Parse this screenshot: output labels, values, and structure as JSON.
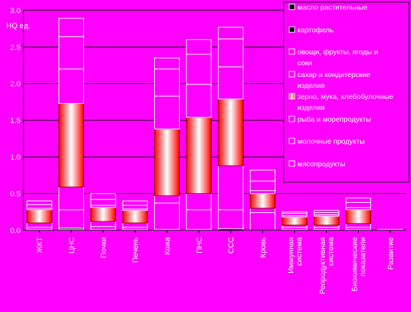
{
  "chart_data": {
    "type": "bar",
    "stacked": true,
    "ylabel": "НQ ед.",
    "ylim": [
      0,
      3.0
    ],
    "yticks": [
      "0.0",
      "0.5",
      "1.0",
      "1.5",
      "2.0",
      "2.5",
      "3.0"
    ],
    "grid": true,
    "legend_position": "top-right",
    "categories": [
      "ЖКТ",
      "ЦНС",
      "Почки",
      "Печень",
      "Кожа",
      "ПНС",
      "ССС",
      "Кровь",
      "Иммунная система",
      "Репродуктивная система",
      "Биохимические показатели",
      "Развитие"
    ],
    "series": [
      {
        "name": "масло растительные",
        "color": "#000000",
        "values": [
          0,
          0.01,
          0,
          0,
          0,
          0,
          0,
          0,
          0,
          0,
          0,
          0
        ]
      },
      {
        "name": "картофель",
        "color": "#000000",
        "values": [
          0.01,
          0.02,
          0.01,
          0.01,
          0.01,
          0.01,
          0.02,
          0,
          0.01,
          0.01,
          0.01,
          0.01
        ]
      },
      {
        "name": "овощи, фрукты, ягоды и соки",
        "color": "#ff00ff",
        "values": [
          0.03,
          0.25,
          0.04,
          0.03,
          0.36,
          0.27,
          0.26,
          0.24,
          0.03,
          0.03,
          0.03,
          0
        ]
      },
      {
        "name": "сахар и кондитерские изделия",
        "color": "#ff00ff",
        "values": [
          0.06,
          0.31,
          0.07,
          0.06,
          0.1,
          0.22,
          0.6,
          0.06,
          0.03,
          0.03,
          0.05,
          0
        ]
      },
      {
        "name": "зерно, мука, хлебобулочные изделия",
        "color": "gradient",
        "values": [
          0.18,
          1.14,
          0.19,
          0.17,
          0.91,
          1.04,
          0.91,
          0.2,
          0.11,
          0.12,
          0.19,
          0
        ]
      },
      {
        "name": "рыба и морепродукты",
        "color": "#ff00ff",
        "values": [
          0.02,
          0.47,
          0.03,
          0.02,
          0.45,
          0.45,
          0.44,
          0.04,
          0.02,
          0.02,
          0.03,
          0
        ]
      },
      {
        "name": "молочные продукты",
        "color": "#ff00ff",
        "values": [
          0.05,
          0.44,
          0.08,
          0.05,
          0.37,
          0.41,
          0.38,
          0.13,
          0.03,
          0.03,
          0.07,
          0
        ]
      },
      {
        "name": "мясопродукты",
        "color": "#ff00ff",
        "values": [
          0.05,
          0.25,
          0.08,
          0.06,
          0.15,
          0.2,
          0.16,
          0.15,
          0.02,
          0.03,
          0.06,
          0
        ]
      }
    ]
  }
}
